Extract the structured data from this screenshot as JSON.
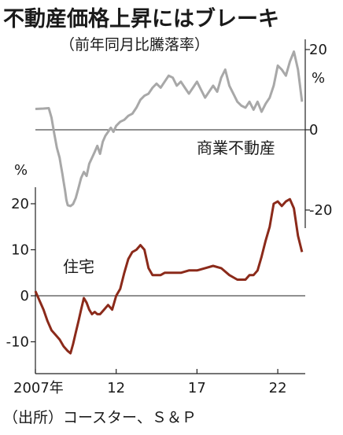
{
  "title": "不動産価格上昇にはブレーキ",
  "subtitle": "（前年同月比騰落率）",
  "source": "（出所）コースター、Ｓ＆Ｐ",
  "colors": {
    "commercial": "#a8a8a8",
    "housing": "#8b2a1a",
    "axis": "#222222"
  },
  "chart_data": [
    {
      "type": "line",
      "series": [
        {
          "name": "商業不動産",
          "x": [
            2007.0,
            2007.5,
            2007.83,
            2008.0,
            2008.17,
            2008.33,
            2008.5,
            2008.58,
            2008.67,
            2008.75,
            2008.83,
            2008.92,
            2009.0,
            2009.17,
            2009.33,
            2009.5,
            2009.67,
            2009.83,
            2010.0,
            2010.17,
            2010.33,
            2010.5,
            2010.67,
            2010.83,
            2011.0,
            2011.17,
            2011.33,
            2011.5,
            2011.67,
            2011.83,
            2012.0,
            2012.25,
            2012.5,
            2012.75,
            2013.0,
            2013.25,
            2013.5,
            2013.75,
            2014.0,
            2014.25,
            2014.5,
            2014.75,
            2015.0,
            2015.25,
            2015.5,
            2015.75,
            2016.0,
            2016.25,
            2016.5,
            2016.75,
            2017.0,
            2017.25,
            2017.5,
            2017.75,
            2018.0,
            2018.25,
            2018.5,
            2018.75,
            2019.0,
            2019.25,
            2019.5,
            2019.75,
            2020.0,
            2020.25,
            2020.5,
            2020.75,
            2021.0,
            2021.25,
            2021.5,
            2021.75,
            2022.0,
            2022.25,
            2022.5,
            2022.75,
            2023.0,
            2023.25,
            2023.5
          ],
          "y": [
            5.2,
            5.3,
            5.4,
            3.0,
            -1.0,
            -4.5,
            -7.0,
            -9.0,
            -11.0,
            -13.0,
            -15.0,
            -17.5,
            -18.8,
            -19.0,
            -18.5,
            -17.0,
            -14.5,
            -12.0,
            -10.5,
            -11.5,
            -8.5,
            -7.0,
            -5.5,
            -4.0,
            -6.0,
            -3.0,
            -1.5,
            -0.5,
            0.5,
            -0.5,
            1.0,
            2.0,
            2.5,
            3.5,
            4.0,
            5.5,
            7.5,
            8.5,
            9.0,
            10.5,
            11.5,
            10.5,
            12.0,
            13.5,
            13.0,
            11.0,
            12.0,
            10.5,
            9.0,
            10.5,
            12.0,
            10.0,
            8.0,
            9.5,
            11.0,
            9.5,
            13.0,
            15.0,
            11.0,
            9.0,
            7.0,
            6.0,
            5.5,
            7.0,
            5.0,
            7.0,
            4.5,
            6.5,
            8.0,
            11.0,
            16.0,
            15.0,
            13.5,
            17.0,
            19.5,
            15.0,
            7.0
          ]
        }
      ],
      "ylim": [
        -22,
        22
      ],
      "ytick_labels": [
        "20",
        "0",
        "-20"
      ],
      "y_unit": "%",
      "label": "商業不動産"
    },
    {
      "type": "line",
      "series": [
        {
          "name": "住宅",
          "x": [
            2007.0,
            2007.25,
            2007.5,
            2007.75,
            2008.0,
            2008.25,
            2008.5,
            2008.75,
            2009.0,
            2009.17,
            2009.33,
            2009.5,
            2009.67,
            2009.83,
            2010.0,
            2010.17,
            2010.33,
            2010.5,
            2010.67,
            2010.83,
            2011.0,
            2011.25,
            2011.5,
            2011.75,
            2012.0,
            2012.25,
            2012.5,
            2012.75,
            2013.0,
            2013.25,
            2013.5,
            2013.75,
            2014.0,
            2014.25,
            2014.5,
            2014.75,
            2015.0,
            2015.5,
            2016.0,
            2016.5,
            2017.0,
            2017.5,
            2018.0,
            2018.5,
            2019.0,
            2019.5,
            2020.0,
            2020.25,
            2020.5,
            2020.75,
            2021.0,
            2021.25,
            2021.5,
            2021.75,
            2022.0,
            2022.25,
            2022.5,
            2022.75,
            2023.0,
            2023.25,
            2023.5
          ],
          "y": [
            1.0,
            -1.0,
            -3.0,
            -5.5,
            -7.5,
            -8.5,
            -9.5,
            -11.0,
            -12.0,
            -12.5,
            -10.5,
            -8.0,
            -5.5,
            -3.0,
            -0.5,
            -1.5,
            -3.0,
            -4.0,
            -3.5,
            -4.0,
            -4.0,
            -3.0,
            -2.0,
            -3.0,
            0.0,
            1.5,
            5.0,
            8.0,
            9.5,
            10.0,
            11.0,
            10.0,
            6.0,
            4.5,
            4.5,
            4.5,
            5.0,
            5.0,
            5.0,
            5.5,
            5.5,
            6.0,
            6.5,
            6.0,
            4.5,
            3.5,
            3.5,
            4.5,
            4.5,
            5.5,
            8.5,
            12.0,
            15.0,
            20.0,
            20.5,
            19.5,
            20.5,
            21.0,
            19.0,
            13.0,
            9.5
          ]
        }
      ],
      "ylim": [
        -16,
        24
      ],
      "ytick_labels": [
        "20",
        "10",
        "0",
        "-10"
      ],
      "y_unit": "%",
      "label": "住宅",
      "xlim": [
        2007,
        2023.7
      ],
      "xtick_labels": [
        "2007年",
        "12",
        "17",
        "22"
      ],
      "xtick_values": [
        2007,
        2012,
        2017,
        2022
      ]
    }
  ]
}
